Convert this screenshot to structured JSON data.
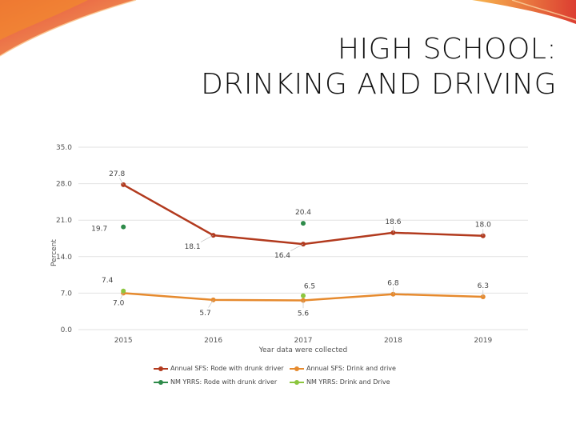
{
  "slide": {
    "title_line1": "HIGH SCHOOL:",
    "title_line2": "DRINKING AND DRIVING"
  },
  "colors": {
    "dark_red": "#b23a1e",
    "orange": "#e68a2e",
    "dark_green": "#2e8b4a",
    "light_green": "#8cc63f"
  },
  "chart_data": {
    "type": "line",
    "title": "",
    "xlabel": "Year data were collected",
    "ylabel": "Percent",
    "ylim": [
      0,
      35
    ],
    "yticks": [
      "0.0",
      "7.0",
      "14.0",
      "21.0",
      "28.0",
      "35.0"
    ],
    "categories": [
      "2015",
      "2016",
      "2017",
      "2018",
      "2019"
    ],
    "grid": true,
    "legend_position": "bottom",
    "series": [
      {
        "name": "Annual SFS: Rode with drunk driver",
        "color": "#b23a1e",
        "values": [
          27.8,
          18.1,
          16.4,
          18.6,
          18.0
        ],
        "labels": [
          "27.8",
          "18.1",
          "16.4",
          "18.6",
          "18.0"
        ]
      },
      {
        "name": "Annual SFS: Drink and drive",
        "color": "#e68a2e",
        "values": [
          7.0,
          5.7,
          5.6,
          6.8,
          6.3
        ],
        "labels": [
          "7.0",
          "5.7",
          "5.6",
          "6.8",
          "6.3"
        ]
      },
      {
        "name": "NM YRRS: Rode with drunk driver",
        "color": "#2e8b4a",
        "values": [
          19.7,
          null,
          20.4,
          null,
          null
        ],
        "labels": [
          "19.7",
          "",
          "20.4",
          "",
          ""
        ]
      },
      {
        "name": "NM YRRS: Drink and Drive",
        "color": "#8cc63f",
        "values": [
          7.4,
          null,
          6.5,
          null,
          null
        ],
        "labels": [
          "7.4",
          "",
          "6.5",
          "",
          ""
        ]
      }
    ]
  }
}
